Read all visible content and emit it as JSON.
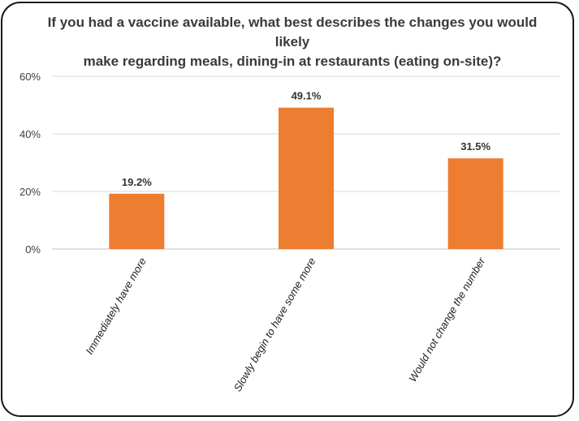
{
  "chart_data": {
    "type": "bar",
    "title_lines": [
      "If you had a vaccine available, what best describes the changes you would likely",
      "make regarding meals, dining-in at restaurants (eating on-site)?"
    ],
    "categories": [
      "Immediately have more",
      "Slowly begin to have some more",
      "Would not change the number"
    ],
    "values": [
      19.2,
      49.1,
      31.5
    ],
    "data_labels": [
      "19.2%",
      "49.1%",
      "31.5%"
    ],
    "ylim": [
      0,
      60
    ],
    "yticks": [
      0,
      20,
      40,
      60
    ],
    "ytick_labels": [
      "0%",
      "20%",
      "40%",
      "60%"
    ],
    "grid": true,
    "bar_color": "#ED7D31",
    "grid_color": "#D9D9D9"
  }
}
